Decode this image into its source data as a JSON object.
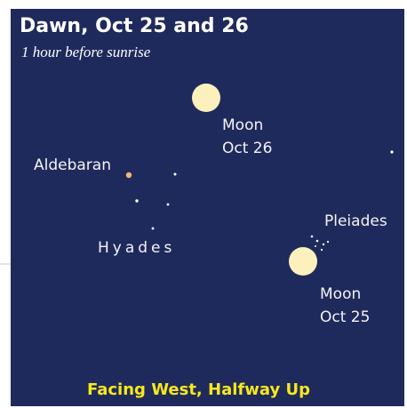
{
  "header": {
    "title": "Dawn, Oct 25 and 26",
    "subtitle": "1 hour before sunrise"
  },
  "labels": {
    "moon_26": [
      "Moon",
      "Oct 26"
    ],
    "aldebaran": "Aldebaran",
    "hyades": "Hyades",
    "pleiades": "Pleiades",
    "moon_25": [
      "Moon",
      "Oct 25"
    ]
  },
  "footer": "Facing West, Halfway Up"
}
